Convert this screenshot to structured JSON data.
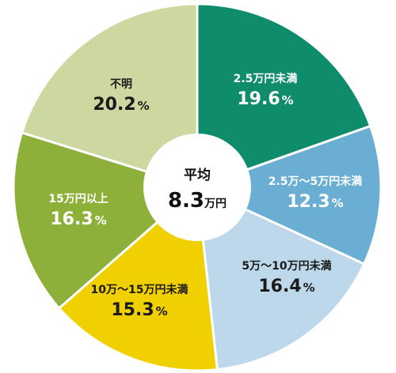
{
  "chart_data": {
    "type": "pie",
    "title": "",
    "start": "top",
    "direction": "clockwise",
    "slices": [
      {
        "label": "2.5万円未満",
        "value": 19.6,
        "display": "19.6",
        "unit": "%",
        "color": "#0e8c6c",
        "text_color": "#ffffff"
      },
      {
        "label": "2.5万～5万円未満",
        "value": 12.3,
        "display": "12.3",
        "unit": "%",
        "color": "#6aaed4",
        "text_color": "#ffffff"
      },
      {
        "label": "5万～10万円未満",
        "value": 16.4,
        "display": "16.4",
        "unit": "%",
        "color": "#bcd8ea",
        "text_color": "#1a1a1a"
      },
      {
        "label": "10万～15万円未満",
        "value": 15.3,
        "display": "15.3",
        "unit": "%",
        "color": "#f0d000",
        "text_color": "#1a1a1a"
      },
      {
        "label": "15万円以上",
        "value": 16.3,
        "display": "16.3",
        "unit": "%",
        "color": "#8cb03a",
        "text_color": "#ffffff"
      },
      {
        "label": "不明",
        "value": 20.2,
        "display": "20.2",
        "unit": "%",
        "color": "#cdd8a0",
        "text_color": "#1a1a1a"
      }
    ],
    "center": {
      "title": "平均",
      "value": "8.3",
      "unit": "万円"
    }
  }
}
